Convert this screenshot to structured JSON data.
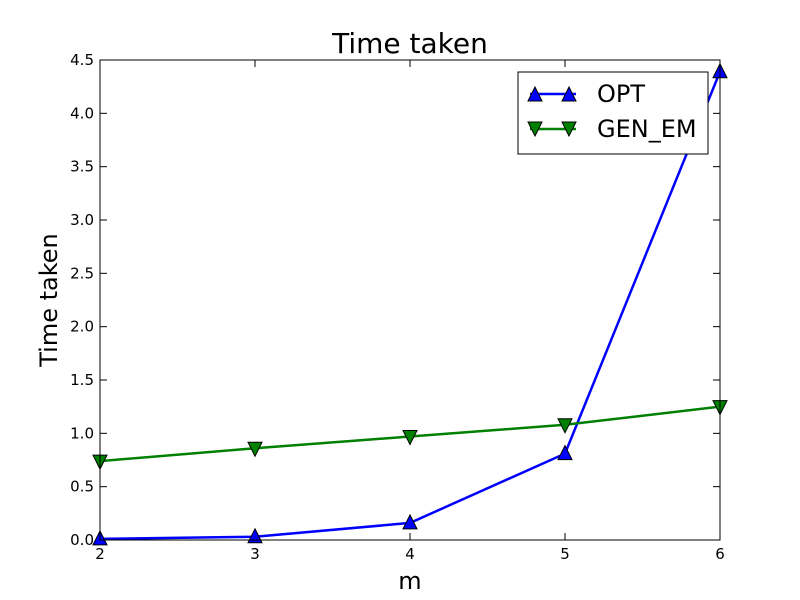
{
  "chart_data": {
    "type": "line",
    "title": "Time taken",
    "xlabel": "m",
    "ylabel": "Time taken",
    "x": [
      2,
      3,
      4,
      5,
      6
    ],
    "xlim": [
      2,
      6
    ],
    "ylim": [
      0,
      4.5
    ],
    "xticks": [
      2,
      3,
      4,
      5,
      6
    ],
    "yticks": [
      0.0,
      0.5,
      1.0,
      1.5,
      2.0,
      2.5,
      3.0,
      3.5,
      4.0,
      4.5
    ],
    "xtick_labels": [
      "2",
      "3",
      "4",
      "5",
      "6"
    ],
    "ytick_labels": [
      "0.0",
      "0.5",
      "1.0",
      "1.5",
      "2.0",
      "2.5",
      "3.0",
      "3.5",
      "4.0",
      "4.5"
    ],
    "grid": false,
    "legend_position": "top-right",
    "series": [
      {
        "name": "OPT",
        "values": [
          0.01,
          0.03,
          0.16,
          0.81,
          4.39
        ],
        "color": "#0000ff",
        "marker": "triangle-up"
      },
      {
        "name": "GEN_EM",
        "values": [
          0.74,
          0.86,
          0.97,
          1.08,
          1.25
        ],
        "color": "#008000",
        "marker": "triangle-down"
      }
    ]
  }
}
